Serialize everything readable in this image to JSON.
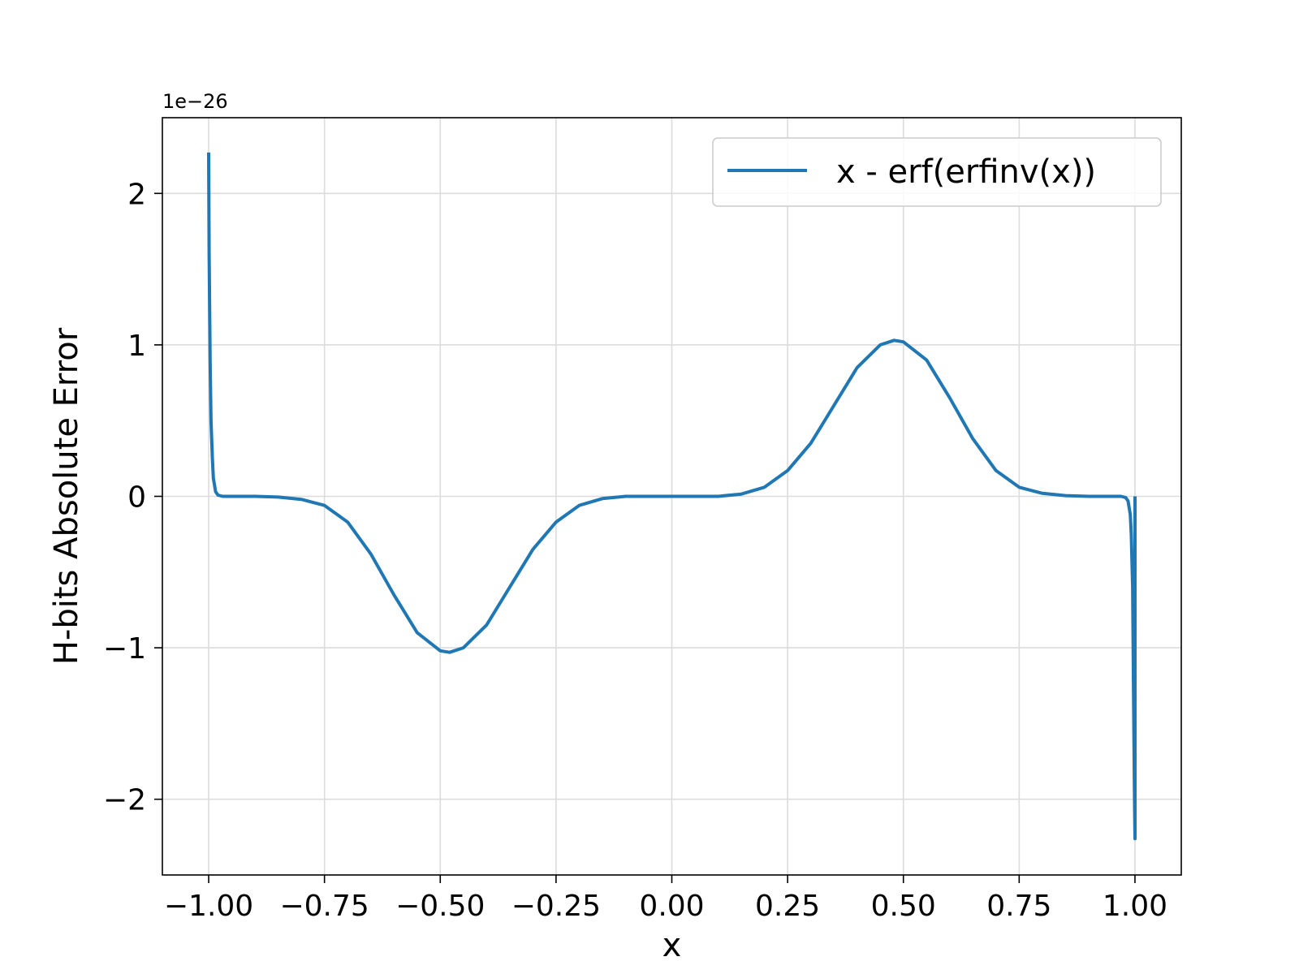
{
  "chart_data": {
    "type": "line",
    "title": "",
    "xlabel": "x",
    "ylabel": "H-bits Absolute Error",
    "y_scale_label": "1e−26",
    "xlim": [
      -1.1,
      1.1
    ],
    "ylim": [
      -2.5,
      2.5
    ],
    "xticks": [
      -1.0,
      -0.75,
      -0.5,
      -0.25,
      0.0,
      0.25,
      0.5,
      0.75,
      1.0
    ],
    "xtick_labels": [
      "−1.00",
      "−0.75",
      "−0.50",
      "−0.25",
      "0.00",
      "0.25",
      "0.50",
      "0.75",
      "1.00"
    ],
    "yticks": [
      -2,
      -1,
      0,
      1,
      2
    ],
    "ytick_labels": [
      "−2",
      "−1",
      "0",
      "1",
      "2"
    ],
    "grid": true,
    "legend_position": "top-right",
    "series": [
      {
        "name": "x - erf(erfinv(x))",
        "color": "#1f77b4",
        "x": [
          -1.0,
          -0.999,
          -0.997,
          -0.995,
          -0.992,
          -0.99,
          -0.985,
          -0.98,
          -0.97,
          -0.95,
          -0.9,
          -0.85,
          -0.8,
          -0.75,
          -0.7,
          -0.65,
          -0.6,
          -0.55,
          -0.5,
          -0.48,
          -0.45,
          -0.4,
          -0.35,
          -0.3,
          -0.25,
          -0.2,
          -0.15,
          -0.1,
          -0.05,
          0.0,
          0.05,
          0.1,
          0.15,
          0.2,
          0.25,
          0.3,
          0.35,
          0.4,
          0.45,
          0.48,
          0.5,
          0.55,
          0.6,
          0.65,
          0.7,
          0.75,
          0.8,
          0.85,
          0.9,
          0.95,
          0.97,
          0.98,
          0.985,
          0.99,
          0.992,
          0.995,
          0.997,
          0.999,
          1.0,
          1.0
        ],
        "y": [
          2.27,
          1.6,
          0.9,
          0.5,
          0.25,
          0.12,
          0.03,
          0.008,
          0.0,
          0.0,
          0.0,
          -0.005,
          -0.02,
          -0.06,
          -0.17,
          -0.38,
          -0.65,
          -0.9,
          -1.02,
          -1.03,
          -1.0,
          -0.85,
          -0.6,
          -0.35,
          -0.17,
          -0.06,
          -0.015,
          0.0,
          0.0,
          0.0,
          0.0,
          0.0,
          0.015,
          0.06,
          0.17,
          0.35,
          0.6,
          0.85,
          1.0,
          1.03,
          1.02,
          0.9,
          0.65,
          0.38,
          0.17,
          0.06,
          0.02,
          0.005,
          0.0,
          0.0,
          0.0,
          -0.008,
          -0.03,
          -0.12,
          -0.25,
          -0.6,
          -1.3,
          -2.0,
          -2.26,
          0.0
        ]
      }
    ]
  }
}
